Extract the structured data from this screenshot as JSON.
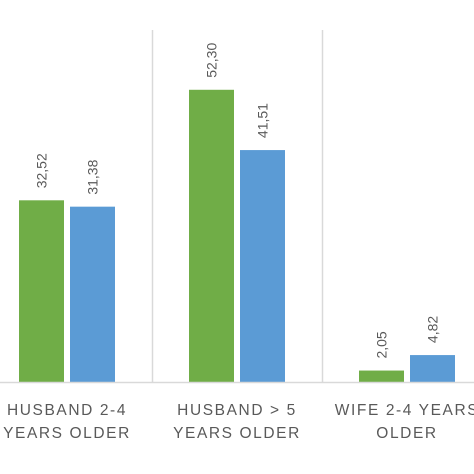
{
  "chart_data": {
    "type": "bar",
    "categories": [
      [
        "HUSBAND 2-4",
        "YEARS OLDER"
      ],
      [
        "HUSBAND > 5",
        "YEARS OLDER"
      ],
      [
        "WIFE 2-4 YEARS",
        "OLDER"
      ]
    ],
    "series": [
      {
        "color": "#70ad47",
        "values": [
          32.52,
          52.3,
          2.05
        ],
        "labels": [
          "32,52",
          "52,30",
          "2,05"
        ]
      },
      {
        "color": "#5b9bd5",
        "values": [
          31.38,
          41.51,
          4.82
        ],
        "labels": [
          "31,38",
          "41,51",
          "4,82"
        ]
      }
    ],
    "ylim": [
      0,
      63
    ],
    "grid": false,
    "axis_color": "#d9d9d9"
  }
}
